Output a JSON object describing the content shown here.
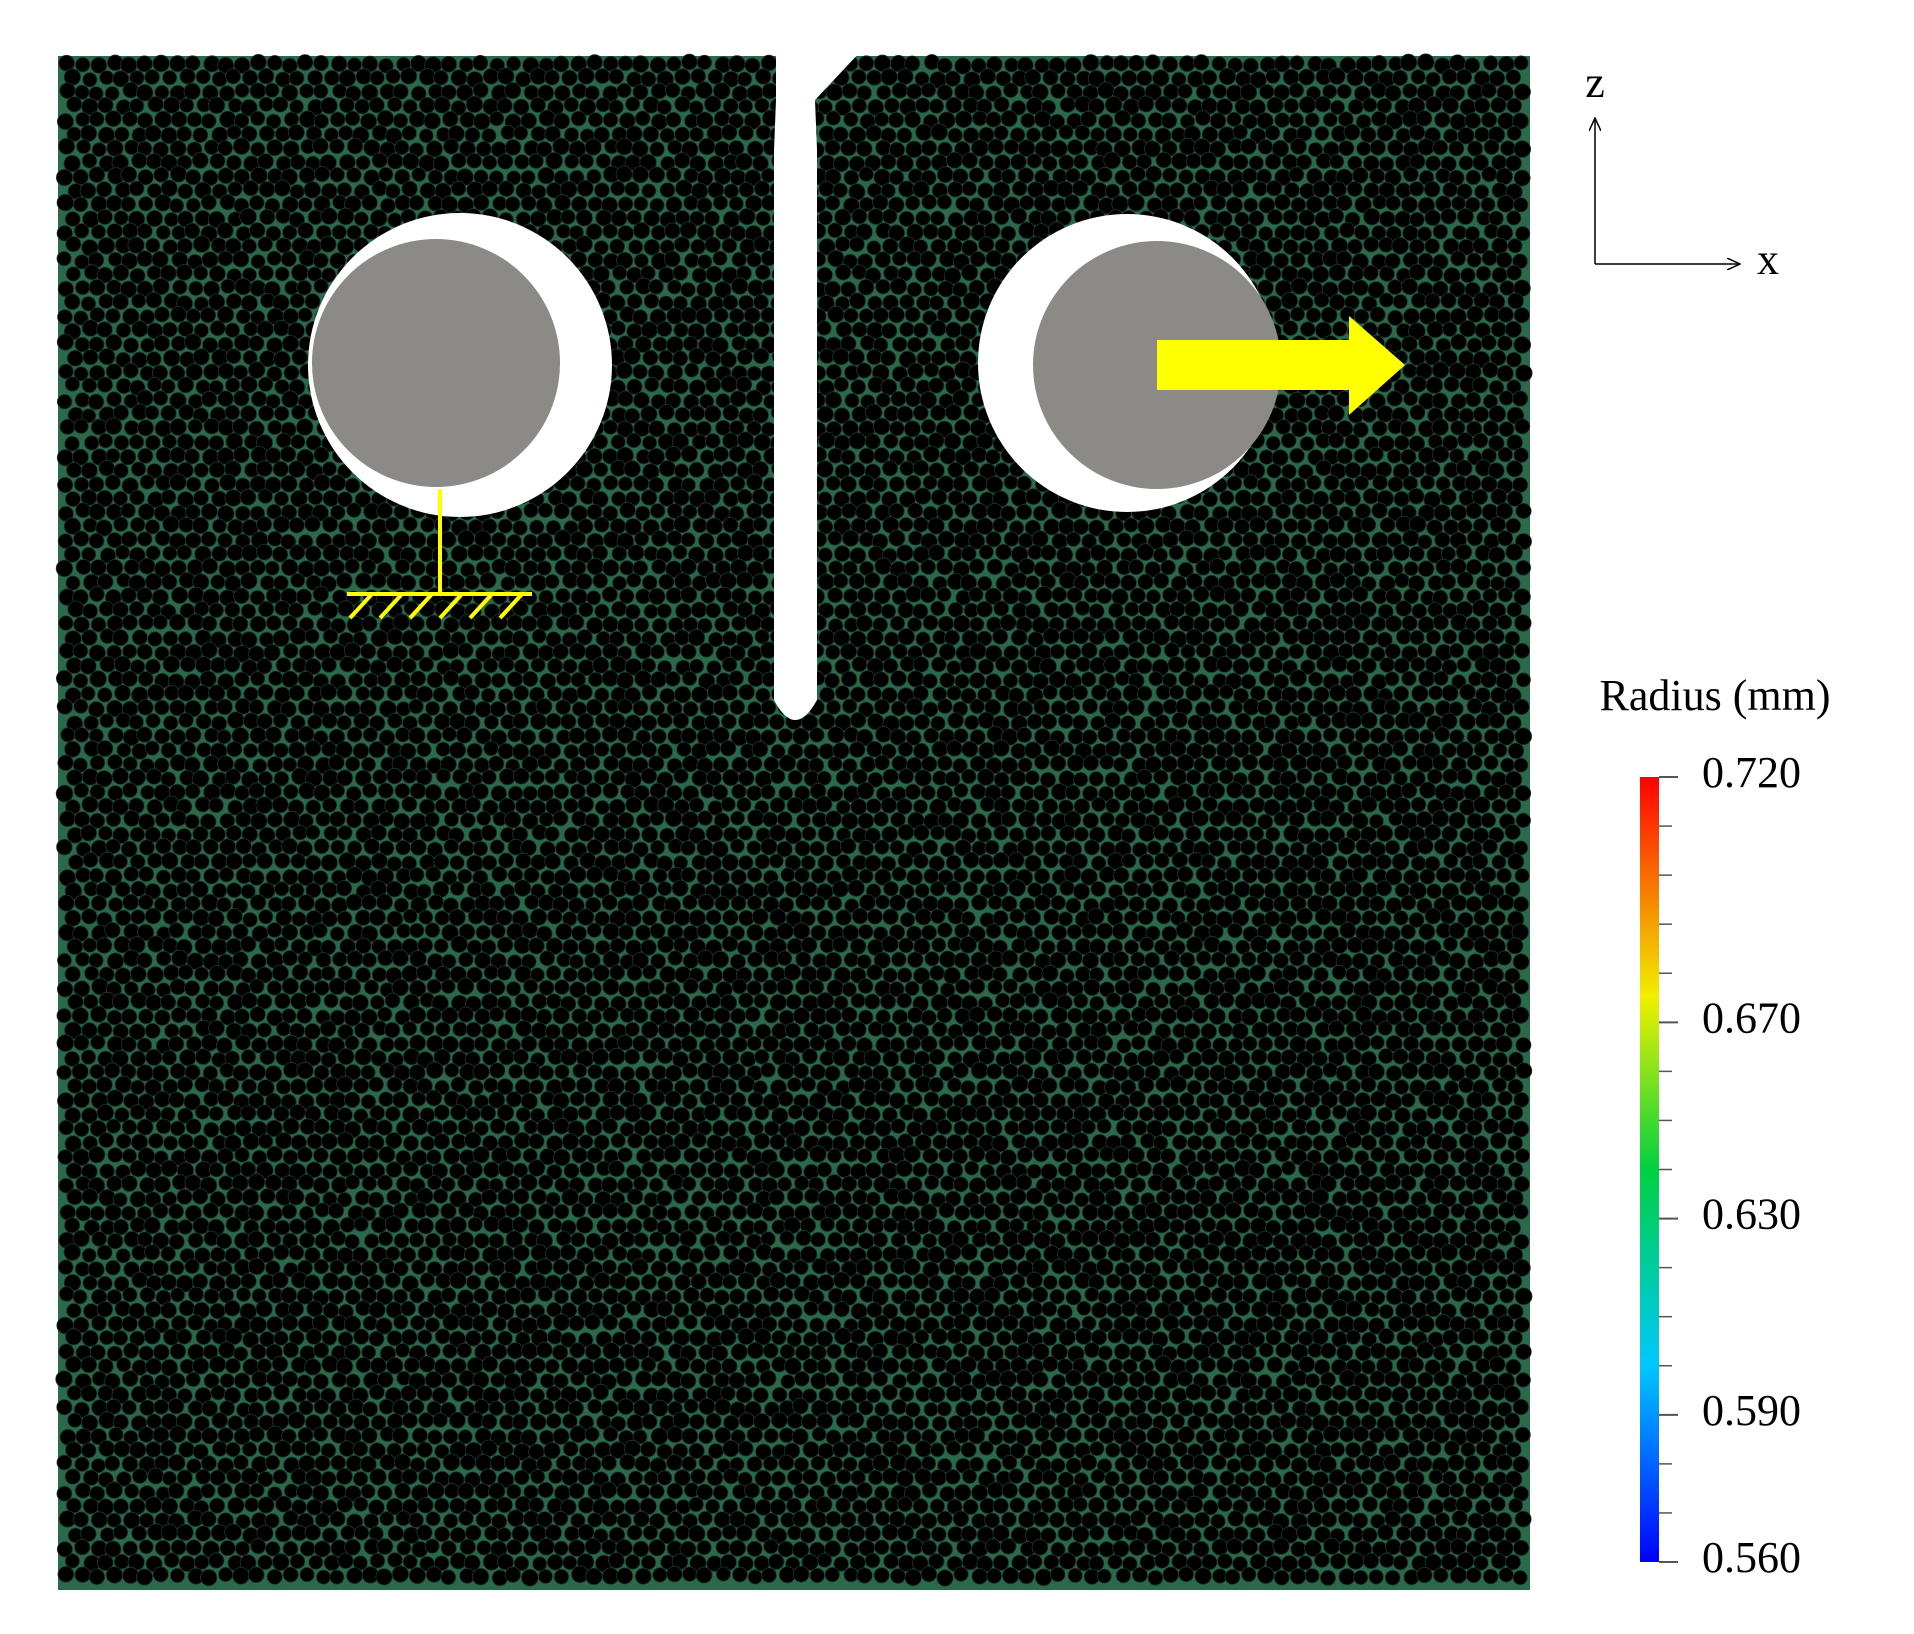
{
  "axes": {
    "vertical": "z",
    "horizontal": "x"
  },
  "colorbar": {
    "title": "Radius (mm)",
    "lim": [
      0.56,
      0.72
    ],
    "ticks": [
      {
        "value": 0.72,
        "label": "0.720"
      },
      {
        "value": 0.67,
        "label": "0.670"
      },
      {
        "value": 0.63,
        "label": "0.630"
      },
      {
        "value": 0.59,
        "label": "0.590"
      },
      {
        "value": 0.56,
        "label": "0.560"
      }
    ]
  }
}
